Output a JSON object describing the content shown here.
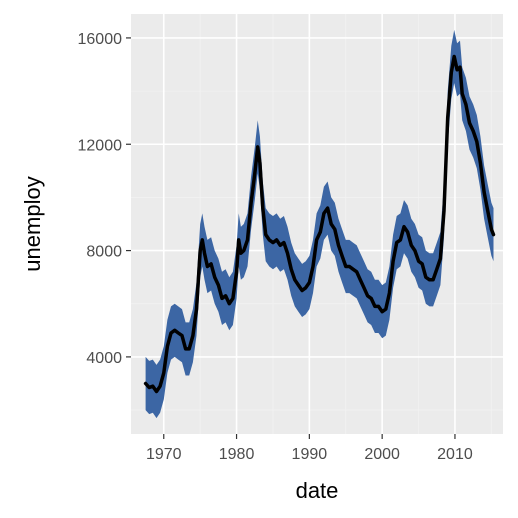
{
  "chart_data": {
    "type": "area",
    "title": "",
    "xlabel": "date",
    "ylabel": "unemploy",
    "xlim": [
      1965.5,
      2016.6
    ],
    "ylim": [
      1100,
      16900
    ],
    "x_ticks": [
      1970,
      1980,
      1990,
      2000,
      2010
    ],
    "x_tick_labels": [
      "1970",
      "1980",
      "1990",
      "2000",
      "2010"
    ],
    "y_ticks": [
      4000,
      8000,
      12000,
      16000
    ],
    "y_tick_labels": [
      "4000",
      "8000",
      "12000",
      "16000"
    ],
    "grid": true,
    "legend": "none",
    "colors": {
      "panel_background": "#ebebeb",
      "grid_major": "#ffffff",
      "grid_minor": "#f2f2f2",
      "ribbon_fill": "#3c66a4",
      "line": "#000000",
      "tick_text": "#4d4d4d",
      "tick_mark": "#333333",
      "axis_title": "#000000"
    },
    "ribbon_half_width": 1000,
    "series": [
      {
        "type": "line",
        "x": [
          1967.5,
          1968.0,
          1968.5,
          1969.0,
          1969.5,
          1970.0,
          1970.5,
          1971.0,
          1971.5,
          1972.0,
          1972.5,
          1973.0,
          1973.5,
          1974.0,
          1974.5,
          1975.0,
          1975.3,
          1975.6,
          1976.0,
          1976.5,
          1977.0,
          1977.5,
          1978.0,
          1978.5,
          1979.0,
          1979.5,
          1980.0,
          1980.3,
          1980.6,
          1981.0,
          1981.5,
          1982.0,
          1982.5,
          1982.9,
          1983.2,
          1983.6,
          1984.0,
          1984.5,
          1985.0,
          1985.5,
          1986.0,
          1986.5,
          1987.0,
          1987.5,
          1988.0,
          1988.5,
          1989.0,
          1989.5,
          1990.0,
          1990.5,
          1991.0,
          1991.5,
          1992.0,
          1992.5,
          1993.0,
          1993.5,
          1994.0,
          1994.5,
          1995.0,
          1995.5,
          1996.0,
          1996.5,
          1997.0,
          1997.5,
          1998.0,
          1998.5,
          1999.0,
          1999.5,
          2000.0,
          2000.5,
          2001.0,
          2001.5,
          2002.0,
          2002.5,
          2003.0,
          2003.5,
          2004.0,
          2004.5,
          2005.0,
          2005.5,
          2006.0,
          2006.5,
          2007.0,
          2007.5,
          2008.0,
          2008.5,
          2009.0,
          2009.5,
          2009.9,
          2010.3,
          2010.7,
          2011.0,
          2011.5,
          2012.0,
          2012.5,
          2013.0,
          2013.5,
          2014.0,
          2014.5,
          2015.0,
          2015.3
        ],
        "y": [
          3000,
          2850,
          2900,
          2700,
          2900,
          3400,
          4400,
          4900,
          5000,
          4900,
          4800,
          4300,
          4300,
          4800,
          5800,
          8000,
          8400,
          7900,
          7400,
          7500,
          7000,
          6700,
          6200,
          6300,
          6000,
          6200,
          7200,
          8400,
          7900,
          8000,
          8400,
          9800,
          10900,
          11900,
          11300,
          9600,
          8600,
          8400,
          8300,
          8400,
          8200,
          8300,
          7900,
          7300,
          6900,
          6700,
          6500,
          6600,
          6800,
          7400,
          8400,
          8700,
          9400,
          9600,
          9000,
          8800,
          8200,
          7800,
          7400,
          7400,
          7300,
          7200,
          6900,
          6600,
          6300,
          6200,
          5900,
          5900,
          5700,
          5800,
          6400,
          7600,
          8300,
          8400,
          8900,
          8700,
          8200,
          8000,
          7600,
          7500,
          7000,
          6900,
          6900,
          7300,
          7700,
          9500,
          13000,
          14700,
          15300,
          14800,
          14900,
          13900,
          13500,
          12800,
          12500,
          12100,
          11300,
          10200,
          9500,
          8800,
          8600
        ]
      }
    ]
  }
}
